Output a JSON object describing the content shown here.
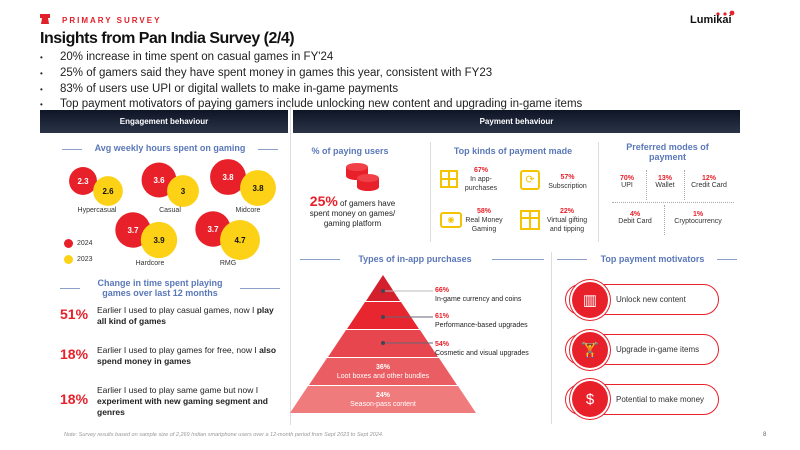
{
  "header": {
    "eyebrow": "PRIMARY SURVEY",
    "title": "Insights from Pan India Survey (2/4)",
    "logo": "Lumikai",
    "bullets": [
      "20% increase in time spent on casual games in FY'24",
      "25% of gamers said they have spent money in games this year, consistent with FY23",
      "83% of users use UPI or digital wallets to make in-game payments",
      "Top payment motivators of paying gamers include unlocking new content and upgrading in-game items"
    ]
  },
  "engagement": {
    "bar": "Engagement behaviour",
    "hours_title": "Avg weekly hours spent on gaming",
    "legend": [
      {
        "label": "2024",
        "color": "#e8202a"
      },
      {
        "label": "2023",
        "color": "#fcd116"
      }
    ],
    "segments": [
      {
        "name": "Hypercasual",
        "y2024": "2.3",
        "y2023": "2.6"
      },
      {
        "name": "Casual",
        "y2024": "3.6",
        "y2023": "3"
      },
      {
        "name": "Midcore",
        "y2024": "3.8",
        "y2023": "3.8"
      },
      {
        "name": "Hardcore",
        "y2024": "3.7",
        "y2023": "3.9"
      },
      {
        "name": "RMG",
        "y2024": "3.7",
        "y2023": "4.7"
      }
    ],
    "change_title_1": "Change in time spent playing",
    "change_title_2": "games over last 12 months",
    "changes": [
      {
        "pct": "51%",
        "plain": "Earlier I used to play casual games, now I ",
        "bold": "play all kind of games"
      },
      {
        "pct": "18%",
        "plain": "Earlier I used to play games for free, now I ",
        "bold": "also spend money in games"
      },
      {
        "pct": "18%",
        "plain": "Earlier I used to play same game but now I ",
        "bold": "experiment with new gaming segment and genres"
      }
    ]
  },
  "payment": {
    "bar": "Payment behaviour",
    "paying_title": "% of paying users",
    "paying_pct": "25%",
    "paying_text_1": " of gamers have",
    "paying_text_2": "spent money on games/",
    "paying_text_3": "gaming platform",
    "kinds_title": "Top kinds of payment made",
    "kinds": [
      {
        "pct": "67%",
        "label": "In app-purchases",
        "icon": "grid-icon"
      },
      {
        "pct": "57%",
        "label": "Subscription",
        "icon": "subscription-icon"
      },
      {
        "pct": "58%",
        "label": "Real Money Gaming",
        "icon": "money-icon"
      },
      {
        "pct": "22%",
        "label": "Virtual gifting and tipping",
        "icon": "gift-icon"
      }
    ],
    "modes_title": "Preferred modes of payment",
    "modes": [
      {
        "pct": "70%",
        "label": "UPI"
      },
      {
        "pct": "13%",
        "label": "Wallet"
      },
      {
        "pct": "12%",
        "label": "Credit Card"
      },
      {
        "pct": "4%",
        "label": "Debit Card"
      },
      {
        "pct": "1%",
        "label": "Cryptocurrency"
      }
    ],
    "iap_title": "Types of in-app purchases",
    "iap": [
      {
        "pct": "66%",
        "label": "In-game currency and coins",
        "color": "#d41f2c"
      },
      {
        "pct": "61%",
        "label": "Performance-based upgrades",
        "color": "#e8262f"
      },
      {
        "pct": "54%",
        "label": "Cosmetic and visual upgrades",
        "color": "#e8464e"
      },
      {
        "pct": "36%",
        "label": "Loot boxes and other bundles",
        "color": "#ea5d62"
      },
      {
        "pct": "24%",
        "label": "Season-pass content",
        "color": "#f07b7d"
      }
    ],
    "motivators_title": "Top payment motivators",
    "motivators": [
      {
        "label": "Unlock new content",
        "icon": "bar-chart-icon"
      },
      {
        "label": "Upgrade in-game items",
        "icon": "weightlifter-icon"
      },
      {
        "label": "Potential to make money",
        "icon": "hand-coin-icon"
      }
    ]
  },
  "footer": {
    "note": "Note: Survey results based on sample size of 2,269 Indian smartphone users over a 12-month period from Sept 2023 to Sept 2024.",
    "page": "8"
  }
}
